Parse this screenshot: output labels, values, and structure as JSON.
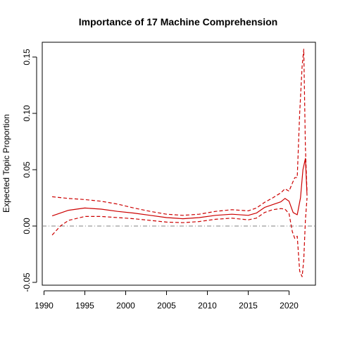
{
  "chart_data": {
    "type": "line",
    "title": "Importance of 17 Machine Comprehension",
    "xlabel": "",
    "ylabel": "Expected Topic Proportion",
    "xlim": [
      1990,
      2023
    ],
    "ylim": [
      -0.05,
      0.16
    ],
    "x_ticks": [
      1990,
      1995,
      2000,
      2005,
      2010,
      2015,
      2020
    ],
    "y_ticks": [
      "-0.05",
      "0.00",
      "0.05",
      "0.10",
      "0.15"
    ],
    "zero_line": 0,
    "line_color": "#cc0000",
    "zero_line_color": "#808080",
    "grid": false,
    "series": [
      {
        "style": "solid",
        "x": [
          1991,
          1993,
          1995,
          1997,
          1999,
          2001,
          2003,
          2005,
          2007,
          2009,
          2011,
          2013,
          2015,
          2016,
          2017,
          2018,
          2019,
          2019.5,
          2020,
          2020.5,
          2021,
          2021.4,
          2021.7,
          2022,
          2022.2
        ],
        "y": [
          0.009,
          0.014,
          0.016,
          0.015,
          0.013,
          0.0115,
          0.0095,
          0.0075,
          0.0065,
          0.0075,
          0.0095,
          0.0105,
          0.0095,
          0.0115,
          0.0165,
          0.019,
          0.0215,
          0.0245,
          0.022,
          0.012,
          0.01,
          0.025,
          0.05,
          0.06,
          0.027
        ]
      },
      {
        "style": "dashed",
        "x": [
          1991,
          1993,
          1995,
          1997,
          1999,
          2001,
          2003,
          2005,
          2007,
          2009,
          2011,
          2013,
          2015,
          2016,
          2017,
          2018,
          2019,
          2019.5,
          2020,
          2020.4,
          2020.7,
          2021,
          2021.3,
          2021.6,
          2021.8,
          2022,
          2022.2
        ],
        "y": [
          0.026,
          0.0245,
          0.0235,
          0.022,
          0.0195,
          0.016,
          0.013,
          0.0105,
          0.0095,
          0.0105,
          0.013,
          0.0145,
          0.0135,
          0.016,
          0.021,
          0.025,
          0.0295,
          0.033,
          0.031,
          0.038,
          0.043,
          0.043,
          0.1,
          0.142,
          0.157,
          0.07,
          0.03
        ]
      },
      {
        "style": "dashed",
        "x": [
          1991,
          1992,
          1993,
          1995,
          1997,
          1999,
          2001,
          2003,
          2005,
          2007,
          2009,
          2011,
          2013,
          2015,
          2016,
          2017,
          2018,
          2019,
          2019.5,
          2020,
          2020.4,
          2020.7,
          2021,
          2021.3,
          2021.6,
          2021.8,
          2022,
          2022.2
        ],
        "y": [
          -0.008,
          0.0,
          0.005,
          0.0085,
          0.0085,
          0.0075,
          0.0065,
          0.005,
          0.0035,
          0.003,
          0.004,
          0.006,
          0.007,
          0.0055,
          0.007,
          0.012,
          0.0145,
          0.0155,
          0.015,
          0.011,
          -0.005,
          -0.011,
          -0.009,
          -0.04,
          -0.045,
          -0.03,
          0.005,
          0.025
        ]
      }
    ]
  }
}
